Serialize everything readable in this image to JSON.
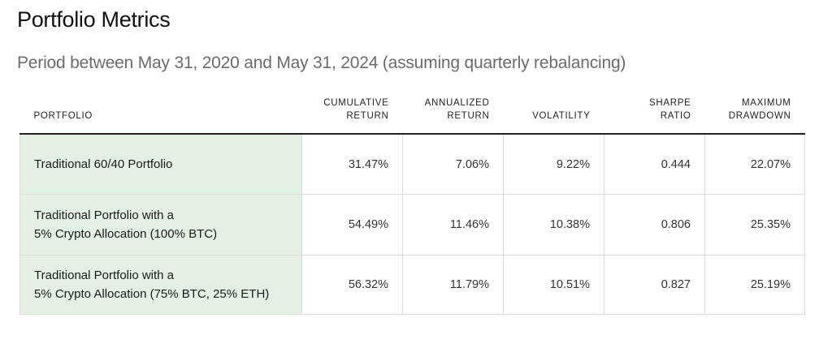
{
  "title": "Portfolio Metrics",
  "subtitle": "Period between May 31, 2020 and May 31, 2024 (assuming quarterly rebalancing)",
  "table": {
    "headers": {
      "portfolio": "PORTFOLIO",
      "cumulative_return": [
        "CUMULATIVE",
        "RETURN"
      ],
      "annualized_return": [
        "ANNUALIZED",
        "RETURN"
      ],
      "volatility": "VOLATILITY",
      "sharpe_ratio": [
        "SHARPE",
        "RATIO"
      ],
      "maximum_drawdown": [
        "MAXIMUM",
        "DRAWDOWN"
      ]
    },
    "rows": [
      {
        "portfolio": [
          "Traditional 60/40 Portfolio"
        ],
        "cumulative_return": "31.47%",
        "annualized_return": "7.06%",
        "volatility": "9.22%",
        "sharpe_ratio": "0.444",
        "maximum_drawdown": "22.07%"
      },
      {
        "portfolio": [
          "Traditional Portfolio with a",
          "5% Crypto Allocation (100% BTC)"
        ],
        "cumulative_return": "54.49%",
        "annualized_return": "11.46%",
        "volatility": "10.38%",
        "sharpe_ratio": "0.806",
        "maximum_drawdown": "25.35%"
      },
      {
        "portfolio": [
          "Traditional Portfolio with a",
          "5% Crypto Allocation (75% BTC, 25% ETH)"
        ],
        "cumulative_return": "56.32%",
        "annualized_return": "11.79%",
        "volatility": "10.51%",
        "sharpe_ratio": "0.827",
        "maximum_drawdown": "25.19%"
      }
    ]
  },
  "colors": {
    "portfolio_column_bg": "#e3f1e4",
    "header_rule": "#222222",
    "cell_border": "#dcdcdc",
    "subtitle_text": "#6b6b6b"
  }
}
